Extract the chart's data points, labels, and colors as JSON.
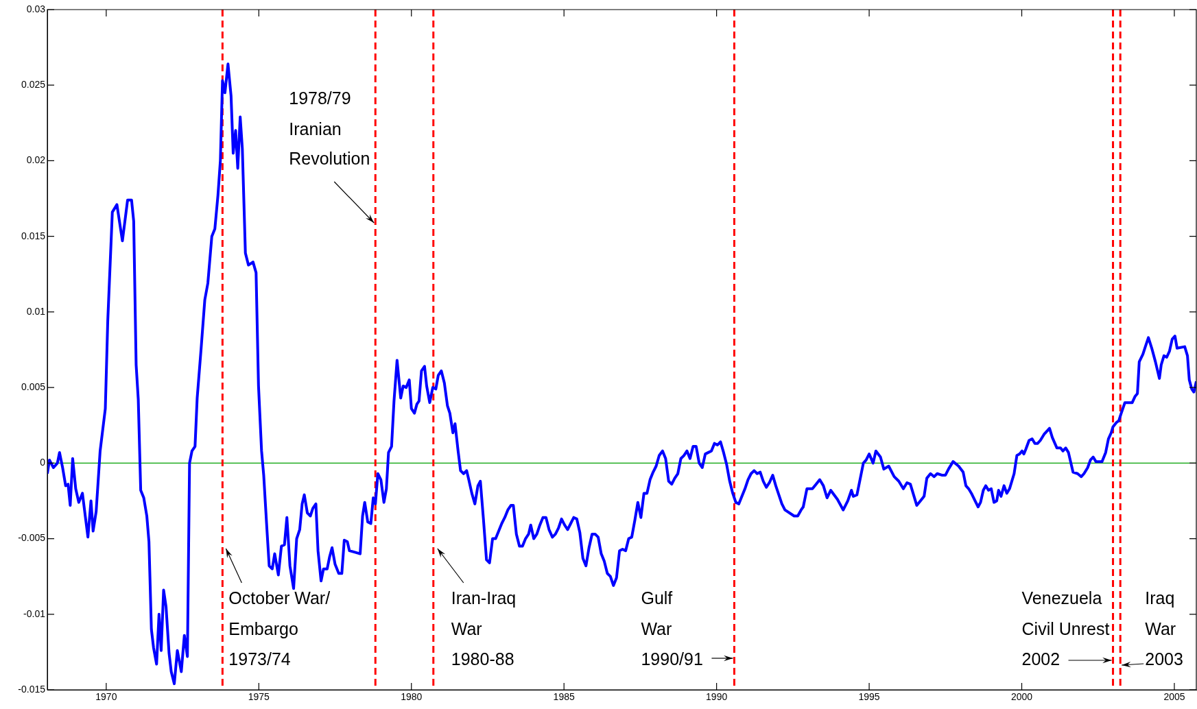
{
  "chart_data": {
    "type": "line",
    "color": "#0000ff",
    "marker": "none",
    "line_style": "solid",
    "grid": false,
    "legend": false,
    "xlim": [
      1968.07,
      2005.72
    ],
    "xticks": [
      1970,
      1975,
      1980,
      1985,
      1990,
      1995,
      2000,
      2005
    ],
    "ylim": [
      -0.015,
      0.03
    ],
    "yticks": [
      -0.015,
      -0.01,
      -0.005,
      0,
      0.005,
      0.01,
      0.015,
      0.02,
      0.025,
      0.03
    ],
    "ref_lines": [
      {
        "axis": "y",
        "value": 0,
        "color": "#00a000",
        "line_style": "solid"
      },
      {
        "axis": "x",
        "value": 1973.81,
        "label": "October War/\nEmbargo\n1973/74",
        "color": "#ff0000",
        "line_style": "dashed"
      },
      {
        "axis": "x",
        "value": 1978.82,
        "label": "1978/79\nIranian\nRevolution",
        "color": "#ff0000",
        "line_style": "dashed"
      },
      {
        "axis": "x",
        "value": 1980.72,
        "label": "Iran-Iraq\nWar\n1980-88",
        "color": "#ff0000",
        "line_style": "dashed"
      },
      {
        "axis": "x",
        "value": 1990.58,
        "label": "Gulf\nWar\n1990/91",
        "color": "#ff0000",
        "line_style": "dashed"
      },
      {
        "axis": "x",
        "value": 2002.99,
        "label": "Venezuela\nCivil Unrest\n2002",
        "color": "#ff0000",
        "line_style": "dashed"
      },
      {
        "axis": "x",
        "value": 2003.23,
        "label": "Iraq\nWar\n2003",
        "color": "#ff0000",
        "line_style": "dashed"
      }
    ],
    "x": [
      1968.07,
      1968.14,
      1968.27,
      1968.4,
      1968.47,
      1968.57,
      1968.67,
      1968.75,
      1968.82,
      1968.9,
      1969.0,
      1969.1,
      1969.22,
      1969.4,
      1969.5,
      1969.57,
      1969.67,
      1969.8,
      1969.97,
      1970.05,
      1970.2,
      1970.35,
      1970.53,
      1970.7,
      1970.83,
      1970.9,
      1970.98,
      1971.05,
      1971.13,
      1971.23,
      1971.33,
      1971.4,
      1971.48,
      1971.55,
      1971.65,
      1971.73,
      1971.8,
      1971.88,
      1971.96,
      1972.06,
      1972.13,
      1972.23,
      1972.33,
      1972.46,
      1972.56,
      1972.66,
      1972.73,
      1972.81,
      1972.91,
      1972.98,
      1973.11,
      1973.23,
      1973.33,
      1973.46,
      1973.56,
      1973.66,
      1973.74,
      1973.81,
      1973.89,
      1973.99,
      1974.09,
      1974.16,
      1974.24,
      1974.31,
      1974.39,
      1974.46,
      1974.56,
      1974.66,
      1974.81,
      1974.91,
      1974.99,
      1975.09,
      1975.16,
      1975.26,
      1975.34,
      1975.44,
      1975.52,
      1975.64,
      1975.74,
      1975.84,
      1975.92,
      1976.02,
      1976.14,
      1976.24,
      1976.34,
      1976.42,
      1976.49,
      1976.59,
      1976.69,
      1976.77,
      1976.87,
      1976.94,
      1977.04,
      1977.12,
      1977.24,
      1977.32,
      1977.4,
      1977.5,
      1977.62,
      1977.72,
      1977.8,
      1977.9,
      1977.97,
      1978.15,
      1978.32,
      1978.4,
      1978.47,
      1978.57,
      1978.67,
      1978.75,
      1978.82,
      1978.9,
      1979.0,
      1979.1,
      1979.18,
      1979.25,
      1979.35,
      1979.43,
      1979.53,
      1979.65,
      1979.73,
      1979.83,
      1979.93,
      1980.0,
      1980.1,
      1980.18,
      1980.25,
      1980.33,
      1980.43,
      1980.5,
      1980.6,
      1980.7,
      1980.8,
      1980.88,
      1980.98,
      1981.08,
      1981.18,
      1981.26,
      1981.36,
      1981.43,
      1981.53,
      1981.61,
      1981.71,
      1981.81,
      1981.88,
      1981.98,
      1982.08,
      1982.18,
      1982.26,
      1982.36,
      1982.46,
      1982.56,
      1982.66,
      1982.76,
      1982.86,
      1982.96,
      1983.06,
      1983.16,
      1983.26,
      1983.34,
      1983.44,
      1983.54,
      1983.64,
      1983.74,
      1983.84,
      1983.91,
      1984.01,
      1984.11,
      1984.21,
      1984.31,
      1984.41,
      1984.51,
      1984.62,
      1984.72,
      1984.82,
      1984.92,
      1985.02,
      1985.12,
      1985.22,
      1985.32,
      1985.42,
      1985.52,
      1985.62,
      1985.72,
      1985.82,
      1985.92,
      1986.02,
      1986.12,
      1986.22,
      1986.32,
      1986.42,
      1986.52,
      1986.62,
      1986.72,
      1986.82,
      1986.92,
      1987.02,
      1987.12,
      1987.22,
      1987.32,
      1987.42,
      1987.52,
      1987.62,
      1987.72,
      1987.82,
      1987.92,
      1988.02,
      1988.12,
      1988.23,
      1988.33,
      1988.43,
      1988.53,
      1988.63,
      1988.73,
      1988.83,
      1988.93,
      1989.03,
      1989.13,
      1989.23,
      1989.33,
      1989.43,
      1989.53,
      1989.63,
      1989.73,
      1989.83,
      1989.93,
      1990.03,
      1990.13,
      1990.23,
      1990.33,
      1990.43,
      1990.53,
      1990.63,
      1990.73,
      1990.83,
      1990.93,
      1991.03,
      1991.13,
      1991.23,
      1991.33,
      1991.43,
      1991.53,
      1991.63,
      1991.73,
      1991.84,
      1991.94,
      1992.04,
      1992.14,
      1992.24,
      1992.54,
      1992.66,
      1992.77,
      1992.84,
      1992.96,
      1993.14,
      1993.26,
      1993.38,
      1993.5,
      1993.62,
      1993.74,
      1993.96,
      1994.15,
      1994.3,
      1994.42,
      1994.48,
      1994.6,
      1994.81,
      1994.9,
      1995.0,
      1995.13,
      1995.22,
      1995.37,
      1995.48,
      1995.64,
      1995.82,
      1995.97,
      1996.12,
      1996.24,
      1996.35,
      1996.56,
      1996.68,
      1996.8,
      1996.89,
      1997.01,
      1997.13,
      1997.23,
      1997.38,
      1997.5,
      1997.6,
      1997.75,
      1997.93,
      1998.08,
      1998.17,
      1998.26,
      1998.35,
      1998.47,
      1998.57,
      1998.65,
      1998.74,
      1998.82,
      1998.91,
      1999.0,
      1999.09,
      1999.18,
      1999.24,
      1999.32,
      1999.42,
      1999.51,
      1999.6,
      1999.75,
      1999.84,
      1999.93,
      2000.01,
      2000.07,
      2000.13,
      2000.24,
      2000.34,
      2000.43,
      2000.52,
      2000.61,
      2000.73,
      2000.91,
      2001.0,
      2001.15,
      2001.27,
      2001.35,
      2001.44,
      2001.53,
      2001.68,
      2001.83,
      2001.95,
      2002.04,
      2002.16,
      2002.25,
      2002.34,
      2002.43,
      2002.63,
      2002.75,
      2002.84,
      2002.93,
      2002.99,
      2003.11,
      2003.18,
      2003.26,
      2003.38,
      2003.53,
      2003.62,
      2003.71,
      2003.79,
      2003.85,
      2003.97,
      2004.05,
      2004.15,
      2004.26,
      2004.38,
      2004.51,
      2004.57,
      2004.66,
      2004.75,
      2004.84,
      2004.93,
      2005.02,
      2005.09,
      2005.34,
      2005.43,
      2005.49,
      2005.57,
      2005.64,
      2005.72
    ],
    "values": [
      -0.0007,
      0.0002,
      -0.0003,
      0,
      0.0007,
      -0.0003,
      -0.0015,
      -0.0014,
      -0.0028,
      0.0003,
      -0.0017,
      -0.0026,
      -0.002,
      -0.0049,
      -0.0025,
      -0.0045,
      -0.0032,
      0.0008,
      0.0036,
      0.0094,
      0.0166,
      0.0171,
      0.0147,
      0.0174,
      0.0174,
      0.016,
      0.0065,
      0.0042,
      -0.0018,
      -0.0023,
      -0.0035,
      -0.0052,
      -0.011,
      -0.0122,
      -0.0133,
      -0.01,
      -0.0124,
      -0.0084,
      -0.0095,
      -0.0126,
      -0.0138,
      -0.0146,
      -0.0124,
      -0.0138,
      -0.0114,
      -0.0128,
      0,
      0.0008,
      0.0011,
      0.0043,
      0.0076,
      0.0108,
      0.0119,
      0.015,
      0.0155,
      0.0177,
      0.02,
      0.0253,
      0.0245,
      0.0264,
      0.0243,
      0.0205,
      0.022,
      0.0195,
      0.0229,
      0.0208,
      0.0139,
      0.0131,
      0.0133,
      0.0126,
      0.0051,
      0.0008,
      -0.0008,
      -0.0042,
      -0.0068,
      -0.007,
      -0.006,
      -0.0074,
      -0.0055,
      -0.0054,
      -0.0036,
      -0.0068,
      -0.0083,
      -0.005,
      -0.0044,
      -0.0027,
      -0.0021,
      -0.0033,
      -0.0035,
      -0.003,
      -0.0027,
      -0.0058,
      -0.0078,
      -0.007,
      -0.007,
      -0.0062,
      -0.0056,
      -0.0067,
      -0.0073,
      -0.0073,
      -0.0051,
      -0.0052,
      -0.0058,
      -0.0059,
      -0.006,
      -0.0035,
      -0.0026,
      -0.0039,
      -0.004,
      -0.0023,
      -0.0027,
      -0.0007,
      -0.0011,
      -0.0026,
      -0.0017,
      0.0007,
      0.0011,
      0.0041,
      0.0068,
      0.0043,
      0.0051,
      0.005,
      0.0055,
      0.0036,
      0.0033,
      0.0039,
      0.0041,
      0.0061,
      0.0064,
      0.0051,
      0.004,
      0.005,
      0.0049,
      0.0058,
      0.0061,
      0.0053,
      0.0038,
      0.0033,
      0.002,
      0.0026,
      0.0008,
      -0.0005,
      -0.0007,
      -0.0005,
      -0.0011,
      -0.002,
      -0.0027,
      -0.0015,
      -0.0012,
      -0.0037,
      -0.0064,
      -0.0066,
      -0.005,
      -0.005,
      -0.0045,
      -0.004,
      -0.0036,
      -0.0031,
      -0.0028,
      -0.0028,
      -0.0047,
      -0.0055,
      -0.0055,
      -0.005,
      -0.0047,
      -0.0041,
      -0.005,
      -0.0047,
      -0.0041,
      -0.0036,
      -0.0036,
      -0.0044,
      -0.0049,
      -0.0047,
      -0.0043,
      -0.0037,
      -0.0041,
      -0.0044,
      -0.004,
      -0.0036,
      -0.0037,
      -0.0046,
      -0.0063,
      -0.0068,
      -0.0056,
      -0.0047,
      -0.0047,
      -0.0049,
      -0.006,
      -0.0065,
      -0.0073,
      -0.0075,
      -0.0081,
      -0.0076,
      -0.0058,
      -0.0057,
      -0.0058,
      -0.005,
      -0.0049,
      -0.0038,
      -0.0026,
      -0.0036,
      -0.002,
      -0.002,
      -0.0011,
      -0.0006,
      -0.0002,
      0.0005,
      0.0008,
      0.0003,
      -0.0012,
      -0.0014,
      -0.001,
      -0.0007,
      0.0003,
      0.0005,
      0.0008,
      0.0003,
      0.0011,
      0.0011,
      0,
      -0.0003,
      0.0006,
      0.0007,
      0.0008,
      0.0013,
      0.0012,
      0.0014,
      0.0007,
      -0.0001,
      -0.0012,
      -0.002,
      -0.0026,
      -0.0027,
      -0.0022,
      -0.0017,
      -0.0011,
      -0.0007,
      -0.0005,
      -0.0007,
      -0.0006,
      -0.0012,
      -0.0016,
      -0.0013,
      -0.0008,
      -0.0015,
      -0.0021,
      -0.0027,
      -0.0031,
      -0.0035,
      -0.0035,
      -0.0031,
      -0.0029,
      -0.0017,
      -0.0017,
      -0.0014,
      -0.0011,
      -0.0015,
      -0.0023,
      -0.0018,
      -0.0024,
      -0.0031,
      -0.0025,
      -0.0018,
      -0.0022,
      -0.0021,
      0,
      0.0002,
      0.0006,
      0,
      0.0008,
      0.0004,
      -0.0004,
      -0.0002,
      -0.0009,
      -0.0012,
      -0.0017,
      -0.0013,
      -0.0014,
      -0.0028,
      -0.0025,
      -0.0022,
      -0.001,
      -0.0007,
      -0.0009,
      -0.0007,
      -0.0008,
      -0.0008,
      -0.0004,
      0.0001,
      -0.0002,
      -0.0006,
      -0.0015,
      -0.0017,
      -0.002,
      -0.0025,
      -0.0029,
      -0.0026,
      -0.0018,
      -0.0015,
      -0.0018,
      -0.0017,
      -0.0026,
      -0.0025,
      -0.0018,
      -0.0022,
      -0.0015,
      -0.002,
      -0.0017,
      -0.0007,
      0.0005,
      0.0006,
      0.0008,
      0.0006,
      0.0009,
      0.0015,
      0.0016,
      0.0013,
      0.0013,
      0.0015,
      0.0019,
      0.0023,
      0.0017,
      0.001,
      0.001,
      0.0008,
      0.001,
      0.0007,
      -0.0006,
      -0.0007,
      -0.0009,
      -0.0007,
      -0.0003,
      0.0002,
      0.0004,
      0.0001,
      0.0001,
      0.0007,
      0.0016,
      0.002,
      0.0024,
      0.0027,
      0.0028,
      0.0033,
      0.004,
      0.004,
      0.004,
      0.0044,
      0.0046,
      0.0067,
      0.0072,
      0.0077,
      0.0083,
      0.0076,
      0.0067,
      0.0056,
      0.0065,
      0.0071,
      0.007,
      0.0074,
      0.0082,
      0.0084,
      0.0076,
      0.0077,
      0.0071,
      0.0055,
      0.0049,
      0.0047,
      0.0054
    ]
  }
}
